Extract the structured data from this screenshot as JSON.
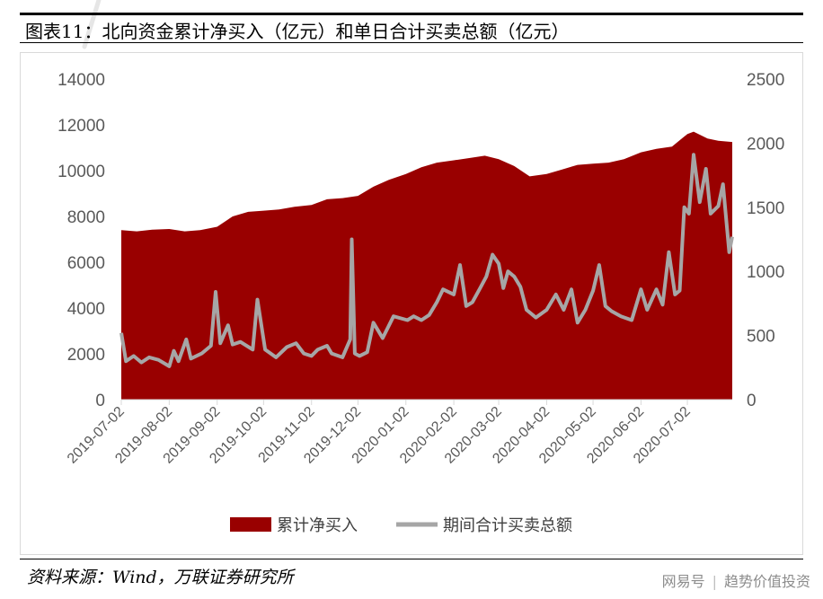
{
  "header": {
    "title": "图表11：北向资金累计净买入（亿元）和单日合计买卖总额（亿元）"
  },
  "footer": {
    "source": "资料来源：Wind，万联证券研究所",
    "brand_left": "网易号",
    "brand_right": "趋势价值投资"
  },
  "colors": {
    "area": "#990000",
    "line": "#a6a6a6",
    "axis": "#d9d9d9",
    "tick": "#595959"
  },
  "chart_data": {
    "type": "area",
    "title": "",
    "x_tick_labels": [
      "2019-07-02",
      "2019-08-02",
      "2019-09-02",
      "2019-10-02",
      "2019-11-02",
      "2019-12-02",
      "2020-01-02",
      "2020-02-02",
      "2020-03-02",
      "2020-04-02",
      "2020-05-02",
      "2020-06-02",
      "2020-07-02"
    ],
    "x_start": "2019-07-02",
    "x_end": "2020-07-31",
    "y_left": {
      "min": 0,
      "max": 14000,
      "ticks": [
        0,
        2000,
        4000,
        6000,
        8000,
        10000,
        12000,
        14000
      ]
    },
    "y_right": {
      "min": 0,
      "max": 2500,
      "ticks": [
        0,
        500,
        1000,
        1500,
        2000,
        2500
      ]
    },
    "legend": {
      "position": "bottom"
    },
    "series": [
      {
        "name": "累计净买入",
        "type": "area",
        "axis": "left",
        "points": [
          [
            "2019-07-02",
            7400
          ],
          [
            "2019-07-12",
            7350
          ],
          [
            "2019-07-22",
            7420
          ],
          [
            "2019-08-02",
            7450
          ],
          [
            "2019-08-12",
            7350
          ],
          [
            "2019-08-22",
            7400
          ],
          [
            "2019-09-02",
            7550
          ],
          [
            "2019-09-12",
            8000
          ],
          [
            "2019-09-22",
            8200
          ],
          [
            "2019-10-02",
            8250
          ],
          [
            "2019-10-12",
            8300
          ],
          [
            "2019-10-22",
            8420
          ],
          [
            "2019-11-02",
            8500
          ],
          [
            "2019-11-12",
            8750
          ],
          [
            "2019-11-22",
            8800
          ],
          [
            "2019-12-02",
            8900
          ],
          [
            "2019-12-12",
            9300
          ],
          [
            "2019-12-22",
            9600
          ],
          [
            "2020-01-02",
            9850
          ],
          [
            "2020-01-12",
            10150
          ],
          [
            "2020-01-22",
            10350
          ],
          [
            "2020-02-02",
            10450
          ],
          [
            "2020-02-12",
            10550
          ],
          [
            "2020-02-22",
            10650
          ],
          [
            "2020-03-02",
            10500
          ],
          [
            "2020-03-12",
            10200
          ],
          [
            "2020-03-22",
            9750
          ],
          [
            "2020-04-02",
            9850
          ],
          [
            "2020-04-12",
            10050
          ],
          [
            "2020-04-22",
            10250
          ],
          [
            "2020-05-02",
            10300
          ],
          [
            "2020-05-12",
            10350
          ],
          [
            "2020-05-22",
            10500
          ],
          [
            "2020-06-02",
            10800
          ],
          [
            "2020-06-12",
            10950
          ],
          [
            "2020-06-22",
            11050
          ],
          [
            "2020-07-02",
            11600
          ],
          [
            "2020-07-06",
            11700
          ],
          [
            "2020-07-15",
            11400
          ],
          [
            "2020-07-22",
            11300
          ],
          [
            "2020-07-31",
            11250
          ]
        ]
      },
      {
        "name": "期间合计买卖总额",
        "type": "line",
        "axis": "right",
        "points": [
          [
            "2019-07-02",
            520
          ],
          [
            "2019-07-05",
            300
          ],
          [
            "2019-07-10",
            340
          ],
          [
            "2019-07-15",
            290
          ],
          [
            "2019-07-20",
            330
          ],
          [
            "2019-07-26",
            310
          ],
          [
            "2019-08-02",
            260
          ],
          [
            "2019-08-05",
            380
          ],
          [
            "2019-08-08",
            300
          ],
          [
            "2019-08-13",
            470
          ],
          [
            "2019-08-16",
            320
          ],
          [
            "2019-08-23",
            360
          ],
          [
            "2019-08-29",
            420
          ],
          [
            "2019-09-01",
            840
          ],
          [
            "2019-09-04",
            440
          ],
          [
            "2019-09-09",
            580
          ],
          [
            "2019-09-12",
            430
          ],
          [
            "2019-09-17",
            450
          ],
          [
            "2019-09-25",
            390
          ],
          [
            "2019-09-28",
            780
          ],
          [
            "2019-10-03",
            390
          ],
          [
            "2019-10-10",
            330
          ],
          [
            "2019-10-17",
            410
          ],
          [
            "2019-10-23",
            440
          ],
          [
            "2019-10-28",
            360
          ],
          [
            "2019-11-02",
            340
          ],
          [
            "2019-11-06",
            390
          ],
          [
            "2019-11-12",
            420
          ],
          [
            "2019-11-15",
            360
          ],
          [
            "2019-11-22",
            330
          ],
          [
            "2019-11-27",
            470
          ],
          [
            "2019-11-28",
            1250
          ],
          [
            "2019-11-30",
            360
          ],
          [
            "2019-12-03",
            340
          ],
          [
            "2019-12-08",
            370
          ],
          [
            "2019-12-12",
            600
          ],
          [
            "2019-12-18",
            480
          ],
          [
            "2019-12-25",
            650
          ],
          [
            "2020-01-03",
            620
          ],
          [
            "2020-01-07",
            650
          ],
          [
            "2020-01-12",
            620
          ],
          [
            "2020-01-17",
            660
          ],
          [
            "2020-01-22",
            760
          ],
          [
            "2020-01-26",
            860
          ],
          [
            "2020-02-02",
            820
          ],
          [
            "2020-02-06",
            1050
          ],
          [
            "2020-02-10",
            730
          ],
          [
            "2020-02-14",
            760
          ],
          [
            "2020-02-19",
            870
          ],
          [
            "2020-02-23",
            960
          ],
          [
            "2020-02-27",
            1130
          ],
          [
            "2020-03-02",
            1060
          ],
          [
            "2020-03-05",
            870
          ],
          [
            "2020-03-08",
            1000
          ],
          [
            "2020-03-12",
            960
          ],
          [
            "2020-03-16",
            880
          ],
          [
            "2020-03-20",
            700
          ],
          [
            "2020-03-26",
            640
          ],
          [
            "2020-04-02",
            700
          ],
          [
            "2020-04-08",
            820
          ],
          [
            "2020-04-13",
            700
          ],
          [
            "2020-04-18",
            860
          ],
          [
            "2020-04-22",
            600
          ],
          [
            "2020-04-27",
            700
          ],
          [
            "2020-05-02",
            850
          ],
          [
            "2020-05-06",
            1050
          ],
          [
            "2020-05-10",
            730
          ],
          [
            "2020-05-14",
            690
          ],
          [
            "2020-05-20",
            650
          ],
          [
            "2020-05-27",
            620
          ],
          [
            "2020-06-02",
            860
          ],
          [
            "2020-06-06",
            700
          ],
          [
            "2020-06-12",
            860
          ],
          [
            "2020-06-16",
            740
          ],
          [
            "2020-06-20",
            1150
          ],
          [
            "2020-06-24",
            820
          ],
          [
            "2020-06-27",
            850
          ],
          [
            "2020-06-30",
            1500
          ],
          [
            "2020-07-03",
            1450
          ],
          [
            "2020-07-06",
            1910
          ],
          [
            "2020-07-10",
            1540
          ],
          [
            "2020-07-14",
            1800
          ],
          [
            "2020-07-17",
            1450
          ],
          [
            "2020-07-22",
            1510
          ],
          [
            "2020-07-25",
            1680
          ],
          [
            "2020-07-29",
            1150
          ],
          [
            "2020-07-31",
            1270
          ]
        ]
      }
    ]
  }
}
